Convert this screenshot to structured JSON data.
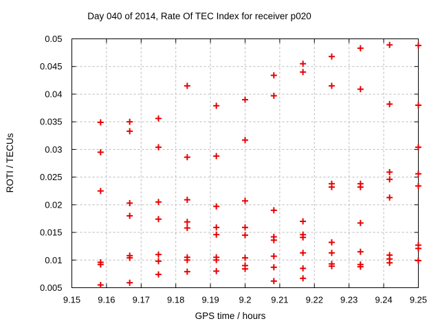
{
  "chart_data": {
    "type": "scatter",
    "title": "Day 040 of 2014, Rate Of TEC Index for receiver p020",
    "xlabel": "GPS time / hours",
    "ylabel": "ROTI / TECUs",
    "xlim": [
      9.15,
      9.25
    ],
    "ylim": [
      0.005,
      0.05
    ],
    "grid": true,
    "legend": "none",
    "xticks": [
      {
        "value": 9.15,
        "label": "9.15"
      },
      {
        "value": 9.16,
        "label": "9.16"
      },
      {
        "value": 9.17,
        "label": "9.17"
      },
      {
        "value": 9.18,
        "label": "9.18"
      },
      {
        "value": 9.19,
        "label": "9.19"
      },
      {
        "value": 9.2,
        "label": "9.2"
      },
      {
        "value": 9.21,
        "label": "9.21"
      },
      {
        "value": 9.22,
        "label": "9.22"
      },
      {
        "value": 9.23,
        "label": "9.23"
      },
      {
        "value": 9.24,
        "label": "9.24"
      },
      {
        "value": 9.25,
        "label": "9.25"
      }
    ],
    "yticks": [
      {
        "value": 0.005,
        "label": "0.005"
      },
      {
        "value": 0.01,
        "label": "0.01"
      },
      {
        "value": 0.015,
        "label": "0.015"
      },
      {
        "value": 0.02,
        "label": "0.02"
      },
      {
        "value": 0.025,
        "label": "0.025"
      },
      {
        "value": 0.03,
        "label": "0.03"
      },
      {
        "value": 0.035,
        "label": "0.035"
      },
      {
        "value": 0.04,
        "label": "0.04"
      },
      {
        "value": 0.045,
        "label": "0.045"
      },
      {
        "value": 0.05,
        "label": "0.05"
      }
    ],
    "marker": {
      "shape": "plus",
      "color": "#e60000",
      "size": 9,
      "stroke_width": 2
    },
    "colors": {
      "background": "#ffffff",
      "axis": "#000000",
      "grid": "#b8b8b8",
      "text": "#000000"
    },
    "series": [
      {
        "name": "ROTI",
        "points": [
          [
            9.1583,
            0.0349
          ],
          [
            9.1583,
            0.0295
          ],
          [
            9.1583,
            0.0225
          ],
          [
            9.1583,
            0.0096
          ],
          [
            9.1583,
            0.0092
          ],
          [
            9.1583,
            0.0055
          ],
          [
            9.1667,
            0.035
          ],
          [
            9.1667,
            0.0333
          ],
          [
            9.1667,
            0.0203
          ],
          [
            9.1667,
            0.018
          ],
          [
            9.1667,
            0.0108
          ],
          [
            9.1667,
            0.0104
          ],
          [
            9.1667,
            0.0059
          ],
          [
            9.175,
            0.0356
          ],
          [
            9.175,
            0.0304
          ],
          [
            9.175,
            0.0205
          ],
          [
            9.175,
            0.0174
          ],
          [
            9.175,
            0.011
          ],
          [
            9.175,
            0.0098
          ],
          [
            9.175,
            0.0074
          ],
          [
            9.1833,
            0.0415
          ],
          [
            9.1833,
            0.0286
          ],
          [
            9.1833,
            0.0209
          ],
          [
            9.1833,
            0.0169
          ],
          [
            9.1833,
            0.0158
          ],
          [
            9.1833,
            0.0105
          ],
          [
            9.1833,
            0.01
          ],
          [
            9.1833,
            0.0079
          ],
          [
            9.1917,
            0.0379
          ],
          [
            9.1917,
            0.0288
          ],
          [
            9.1917,
            0.0197
          ],
          [
            9.1917,
            0.0159
          ],
          [
            9.1917,
            0.0146
          ],
          [
            9.1917,
            0.0105
          ],
          [
            9.1917,
            0.01
          ],
          [
            9.1917,
            0.008
          ],
          [
            9.2,
            0.039
          ],
          [
            9.2,
            0.0317
          ],
          [
            9.2,
            0.0207
          ],
          [
            9.2,
            0.0159
          ],
          [
            9.2,
            0.0145
          ],
          [
            9.2,
            0.0104
          ],
          [
            9.2,
            0.009
          ],
          [
            9.2,
            0.0084
          ],
          [
            9.2083,
            0.0434
          ],
          [
            9.2083,
            0.0397
          ],
          [
            9.2083,
            0.019
          ],
          [
            9.2083,
            0.0142
          ],
          [
            9.2083,
            0.0136
          ],
          [
            9.2083,
            0.0107
          ],
          [
            9.2083,
            0.0087
          ],
          [
            9.2083,
            0.0062
          ],
          [
            9.2167,
            0.0455
          ],
          [
            9.2167,
            0.044
          ],
          [
            9.2167,
            0.017
          ],
          [
            9.2167,
            0.0146
          ],
          [
            9.2167,
            0.0141
          ],
          [
            9.2167,
            0.0113
          ],
          [
            9.2167,
            0.0085
          ],
          [
            9.2167,
            0.0067
          ],
          [
            9.225,
            0.0468
          ],
          [
            9.225,
            0.0415
          ],
          [
            9.225,
            0.0238
          ],
          [
            9.225,
            0.0232
          ],
          [
            9.225,
            0.0132
          ],
          [
            9.225,
            0.0113
          ],
          [
            9.225,
            0.0093
          ],
          [
            9.225,
            0.0089
          ],
          [
            9.2333,
            0.0483
          ],
          [
            9.2333,
            0.0409
          ],
          [
            9.2333,
            0.0238
          ],
          [
            9.2333,
            0.0232
          ],
          [
            9.2333,
            0.0167
          ],
          [
            9.2333,
            0.0115
          ],
          [
            9.2333,
            0.0092
          ],
          [
            9.2333,
            0.0088
          ],
          [
            9.2417,
            0.0489
          ],
          [
            9.2417,
            0.0382
          ],
          [
            9.2417,
            0.0259
          ],
          [
            9.2417,
            0.0246
          ],
          [
            9.2417,
            0.0213
          ],
          [
            9.2417,
            0.0109
          ],
          [
            9.2417,
            0.0102
          ],
          [
            9.2417,
            0.0095
          ],
          [
            9.25,
            0.0488
          ],
          [
            9.25,
            0.038
          ],
          [
            9.25,
            0.0304
          ],
          [
            9.25,
            0.0256
          ],
          [
            9.25,
            0.0234
          ],
          [
            9.25,
            0.0127
          ],
          [
            9.25,
            0.0121
          ],
          [
            9.25,
            0.0099
          ]
        ]
      }
    ]
  }
}
